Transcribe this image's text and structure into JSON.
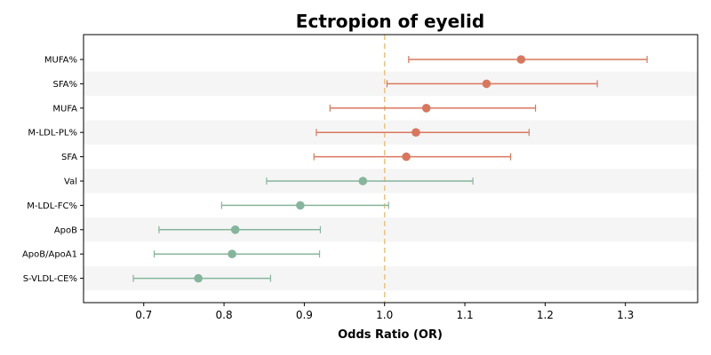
{
  "chart_data": {
    "type": "forest",
    "title": "Ectropion of eyelid",
    "xlabel": "Odds Ratio (OR)",
    "ylabel": "",
    "xlim": [
      0.625,
      1.39
    ],
    "xticks": [
      0.7,
      0.8,
      0.9,
      1.0,
      1.1,
      1.2,
      1.3
    ],
    "xtick_labels": [
      "0.7",
      "0.8",
      "0.9",
      "1.0",
      "1.1",
      "1.2",
      "1.3"
    ],
    "reference_line": 1.0,
    "reference_line_color": "#f0c27a",
    "increase_color": "#d9775e",
    "decrease_color": "#86b59d",
    "band_color": "#f5f5f5",
    "grid": false,
    "rows": [
      {
        "label": "MUFA%",
        "or": 1.17,
        "lower": 1.03,
        "upper": 1.327
      },
      {
        "label": "SFA%",
        "or": 1.127,
        "lower": 1.003,
        "upper": 1.265
      },
      {
        "label": "MUFA",
        "or": 1.052,
        "lower": 0.932,
        "upper": 1.188
      },
      {
        "label": "M-LDL-PL%",
        "or": 1.039,
        "lower": 0.915,
        "upper": 1.18
      },
      {
        "label": "SFA",
        "or": 1.027,
        "lower": 0.912,
        "upper": 1.157
      },
      {
        "label": "Val",
        "or": 0.973,
        "lower": 0.853,
        "upper": 1.11
      },
      {
        "label": "M-LDL-FC%",
        "or": 0.895,
        "lower": 0.797,
        "upper": 1.005
      },
      {
        "label": "ApoB",
        "or": 0.814,
        "lower": 0.719,
        "upper": 0.92
      },
      {
        "label": "ApoB/ApoA1",
        "or": 0.81,
        "lower": 0.713,
        "upper": 0.919
      },
      {
        "label": "S-VLDL-CE%",
        "or": 0.768,
        "lower": 0.687,
        "upper": 0.858
      }
    ]
  }
}
